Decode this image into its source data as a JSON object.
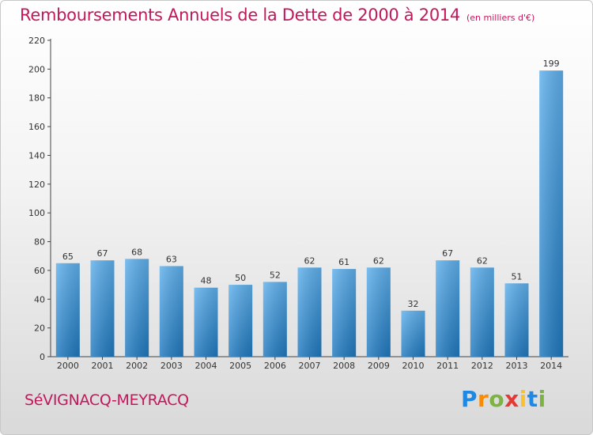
{
  "title": "Remboursements Annuels de la Dette de 2000 à 2014",
  "subtitle": "(en milliers d'€)",
  "city": "SéVIGNACQ-MEYRACQ",
  "logo": {
    "letters": [
      "P",
      "r",
      "o",
      "x",
      "i",
      "t",
      "i"
    ],
    "colors": [
      "#1e88e5",
      "#fb8c00",
      "#7cb342",
      "#e53935",
      "#fbc02d",
      "#1e88e5",
      "#7cb342"
    ]
  },
  "colors": {
    "title": "#c2185b",
    "bar_light": "#5fb0ec",
    "bar_dark": "#1f78be"
  },
  "chart_data": {
    "type": "bar",
    "title": "Remboursements Annuels de la Dette de 2000 à 2014",
    "subtitle": "(en milliers d'€)",
    "categories": [
      "2000",
      "2001",
      "2002",
      "2003",
      "2004",
      "2005",
      "2006",
      "2007",
      "2008",
      "2009",
      "2010",
      "2011",
      "2012",
      "2013",
      "2014"
    ],
    "values": [
      65,
      67,
      68,
      63,
      48,
      50,
      52,
      62,
      61,
      62,
      32,
      67,
      62,
      51,
      199
    ],
    "ylim": [
      0,
      220
    ],
    "yticks": [
      0,
      20,
      40,
      60,
      80,
      100,
      120,
      140,
      160,
      180,
      200,
      220
    ],
    "grid": false,
    "legend": "none"
  }
}
